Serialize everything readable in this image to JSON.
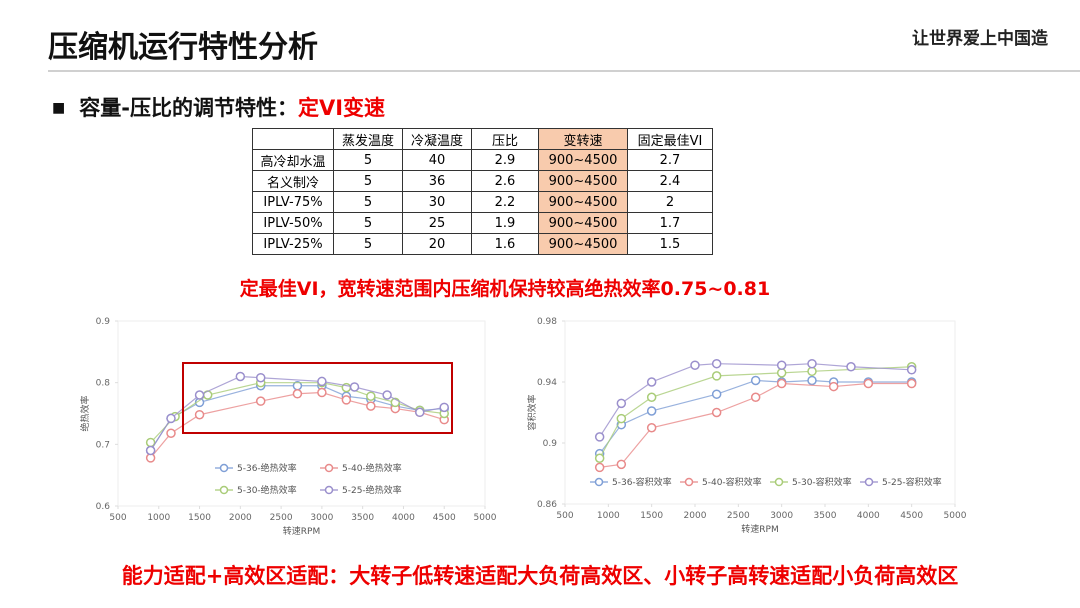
{
  "header": {
    "title": "压缩机运行特性分析",
    "logo": "让世界爱上中国造"
  },
  "bullet": {
    "text": "容量-压比的调节特性：",
    "highlight": "定VI变速"
  },
  "table": {
    "header": [
      "",
      "蒸发温度",
      "冷凝温度",
      "压比",
      "变转速",
      "固定最佳VI"
    ],
    "rows": [
      [
        "高冷却水温",
        5,
        40,
        2.9,
        "900~4500",
        2.7
      ],
      [
        "名义制冷",
        5,
        36,
        2.6,
        "900~4500",
        2.4
      ],
      [
        "IPLV-75%",
        5,
        30,
        2.2,
        "900~4500",
        2
      ],
      [
        "IPLV-50%",
        5,
        25,
        1.9,
        "900~4500",
        1.7
      ],
      [
        "IPLV-25%",
        5,
        20,
        1.6,
        "900~4500",
        1.5
      ]
    ]
  },
  "note": "定最佳VI，宽转速范围内压缩机保持较高绝热效率0.75~0.81",
  "conclusion": "能力适配+高效区适配：大转子低转速适配大负荷高效区、小转子高转速适配小负荷高效区",
  "chart_data": [
    {
      "type": "line",
      "x_label": "转速RPM",
      "y_label": "绝热效率",
      "xlim": [
        500,
        5000
      ],
      "xticks": [
        500,
        1000,
        1500,
        2000,
        2500,
        3000,
        3500,
        4000,
        4500,
        5000
      ],
      "ylim": [
        0.6,
        0.9
      ],
      "yticks": [
        0.6,
        0.7,
        0.8,
        0.9
      ],
      "grid": false,
      "legend": "bottom",
      "series": [
        {
          "name": "5-36-绝热效率",
          "color": "#7f9fd6",
          "x": [
            900,
            1150,
            1500,
            2250,
            2700,
            3000,
            3300,
            3600,
            3900,
            4200,
            4500
          ],
          "values": [
            0.69,
            0.742,
            0.768,
            0.795,
            0.795,
            0.795,
            0.778,
            0.773,
            0.762,
            0.755,
            0.758
          ]
        },
        {
          "name": "5-40-绝热效率",
          "color": "#e88a8a",
          "x": [
            900,
            1150,
            1500,
            2250,
            2700,
            3000,
            3300,
            3600,
            3900,
            4200,
            4500
          ],
          "values": [
            0.678,
            0.718,
            0.748,
            0.77,
            0.782,
            0.784,
            0.772,
            0.762,
            0.758,
            0.752,
            0.74
          ]
        },
        {
          "name": "5-30-绝热效率",
          "color": "#a9cc78",
          "x": [
            900,
            1200,
            1600,
            2250,
            3000,
            3300,
            3600,
            3900,
            4200,
            4500
          ],
          "values": [
            0.703,
            0.745,
            0.78,
            0.8,
            0.8,
            0.792,
            0.778,
            0.768,
            0.755,
            0.75
          ]
        },
        {
          "name": "5-25-绝热效率",
          "color": "#9a8fcc",
          "x": [
            900,
            1150,
            1500,
            2000,
            2250,
            3000,
            3400,
            3800,
            4200,
            4500
          ],
          "values": [
            0.69,
            0.742,
            0.78,
            0.81,
            0.808,
            0.802,
            0.793,
            0.78,
            0.752,
            0.76
          ]
        }
      ]
    },
    {
      "type": "line",
      "x_label": "转速RPM",
      "y_label": "容积效率",
      "xlim": [
        500,
        5000
      ],
      "xticks": [
        500,
        1000,
        1500,
        2000,
        2500,
        3000,
        3500,
        4000,
        4500,
        5000
      ],
      "ylim": [
        0.86,
        0.98
      ],
      "yticks": [
        0.86,
        0.9,
        0.94,
        0.98
      ],
      "grid": false,
      "legend": "bottom",
      "series": [
        {
          "name": "5-36-容积效率",
          "color": "#7f9fd6",
          "x": [
            900,
            1150,
            1500,
            2250,
            2700,
            3000,
            3350,
            3600,
            4000,
            4500
          ],
          "values": [
            0.893,
            0.912,
            0.921,
            0.932,
            0.941,
            0.94,
            0.941,
            0.94,
            0.94,
            0.94
          ]
        },
        {
          "name": "5-40-容积效率",
          "color": "#e88a8a",
          "x": [
            900,
            1150,
            1500,
            2250,
            2700,
            3000,
            3600,
            4000,
            4500
          ],
          "values": [
            0.884,
            0.886,
            0.91,
            0.92,
            0.93,
            0.939,
            0.937,
            0.939,
            0.939
          ]
        },
        {
          "name": "5-30-容积效率",
          "color": "#a9cc78",
          "x": [
            900,
            1150,
            1500,
            2250,
            3000,
            3350,
            4500
          ],
          "values": [
            0.89,
            0.916,
            0.93,
            0.944,
            0.946,
            0.947,
            0.95
          ]
        },
        {
          "name": "5-25-容积效率",
          "color": "#9a8fcc",
          "x": [
            900,
            1150,
            1500,
            2000,
            2250,
            3000,
            3350,
            3800,
            4500
          ],
          "values": [
            0.904,
            0.926,
            0.94,
            0.951,
            0.952,
            0.951,
            0.952,
            0.95,
            0.948
          ]
        }
      ]
    }
  ]
}
